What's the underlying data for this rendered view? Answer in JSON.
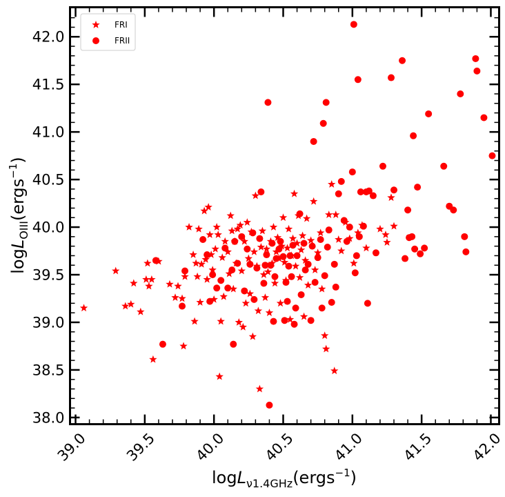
{
  "chart_data": {
    "type": "scatter",
    "xlabel": {
      "prefix": "log",
      "var": "L",
      "sub": "ν1.4GHz",
      "unit_base": "(ergs",
      "unit_exp": "−1",
      "unit_close": ")"
    },
    "ylabel": {
      "prefix": "log",
      "var": "L",
      "sub": "OIII",
      "unit_base": "(ergs",
      "unit_exp": "−1",
      "unit_close": ")"
    },
    "xlim": [
      38.96,
      42.06
    ],
    "ylim": [
      37.93,
      42.31
    ],
    "x_ticks": [
      "39.0",
      "39.5",
      "40.0",
      "40.5",
      "41.0",
      "41.5",
      "42.0"
    ],
    "y_ticks": [
      "38.0",
      "38.5",
      "39.0",
      "39.5",
      "40.0",
      "40.5",
      "41.0",
      "41.5",
      "42.0"
    ],
    "legend_position": "top-left",
    "color": "#ff0000",
    "series": [
      {
        "name": "FRI",
        "marker": "star",
        "points": [
          [
            39.06,
            39.15
          ],
          [
            39.29,
            39.54
          ],
          [
            39.36,
            39.17
          ],
          [
            39.4,
            39.19
          ],
          [
            39.42,
            39.41
          ],
          [
            39.47,
            39.11
          ],
          [
            39.51,
            39.45
          ],
          [
            39.52,
            39.62
          ],
          [
            39.53,
            39.38
          ],
          [
            39.55,
            39.45
          ],
          [
            39.56,
            38.61
          ],
          [
            39.6,
            39.64
          ],
          [
            39.68,
            39.4
          ],
          [
            39.72,
            39.26
          ],
          [
            39.74,
            39.38
          ],
          [
            39.77,
            39.25
          ],
          [
            39.78,
            38.75
          ],
          [
            39.79,
            39.48
          ],
          [
            39.82,
            40.0
          ],
          [
            39.85,
            39.71
          ],
          [
            39.86,
            39.01
          ],
          [
            39.87,
            39.62
          ],
          [
            39.88,
            39.48
          ],
          [
            39.89,
            39.98
          ],
          [
            39.9,
            39.21
          ],
          [
            39.91,
            39.61
          ],
          [
            39.93,
            40.17
          ],
          [
            39.94,
            39.66
          ],
          [
            39.95,
            39.45
          ],
          [
            39.96,
            40.21
          ],
          [
            39.97,
            39.92
          ],
          [
            39.98,
            39.71
          ],
          [
            39.99,
            39.55
          ],
          [
            40.0,
            39.24
          ],
          [
            40.01,
            39.77
          ],
          [
            40.02,
            40.0
          ],
          [
            40.03,
            39.92
          ],
          [
            40.04,
            38.43
          ],
          [
            40.05,
            39.01
          ],
          [
            40.06,
            39.68
          ],
          [
            40.07,
            39.27
          ],
          [
            40.08,
            39.85
          ],
          [
            40.1,
            39.74
          ],
          [
            40.11,
            39.51
          ],
          [
            40.12,
            40.12
          ],
          [
            40.13,
            39.96
          ],
          [
            40.14,
            39.35
          ],
          [
            40.15,
            39.85
          ],
          [
            40.16,
            39.62
          ],
          [
            40.17,
            39.98
          ],
          [
            40.18,
            39.0
          ],
          [
            40.19,
            40.02
          ],
          [
            40.2,
            39.54
          ],
          [
            40.21,
            38.95
          ],
          [
            40.22,
            39.85
          ],
          [
            40.23,
            39.2
          ],
          [
            40.24,
            40.05
          ],
          [
            40.25,
            39.67
          ],
          [
            40.26,
            39.3
          ],
          [
            40.27,
            39.95
          ],
          [
            40.28,
            38.85
          ],
          [
            40.29,
            39.74
          ],
          [
            40.3,
            40.33
          ],
          [
            40.31,
            39.59
          ],
          [
            40.32,
            39.12
          ],
          [
            40.33,
            38.3
          ],
          [
            40.34,
            39.79
          ],
          [
            40.35,
            39.96
          ],
          [
            40.36,
            39.5
          ],
          [
            40.37,
            39.26
          ],
          [
            40.38,
            39.77
          ],
          [
            40.39,
            39.53
          ],
          [
            40.4,
            39.1
          ],
          [
            40.41,
            39.85
          ],
          [
            40.42,
            39.62
          ],
          [
            40.43,
            40.0
          ],
          [
            40.44,
            39.41
          ],
          [
            40.45,
            39.74
          ],
          [
            40.46,
            39.89
          ],
          [
            40.47,
            39.67
          ],
          [
            40.48,
            39.2
          ],
          [
            40.49,
            39.8
          ],
          [
            40.5,
            40.1
          ],
          [
            40.51,
            39.63
          ],
          [
            40.52,
            39.44
          ],
          [
            40.53,
            39.78
          ],
          [
            40.54,
            39.98
          ],
          [
            40.55,
            39.03
          ],
          [
            40.56,
            39.7
          ],
          [
            40.57,
            39.88
          ],
          [
            40.58,
            40.35
          ],
          [
            40.59,
            39.59
          ],
          [
            40.6,
            39.83
          ],
          [
            40.61,
            40.12
          ],
          [
            40.62,
            39.47
          ],
          [
            40.63,
            39.76
          ],
          [
            40.64,
            39.91
          ],
          [
            40.65,
            39.06
          ],
          [
            40.66,
            39.65
          ],
          [
            40.67,
            40.09
          ],
          [
            40.68,
            39.39
          ],
          [
            40.7,
            39.86
          ],
          [
            40.72,
            40.27
          ],
          [
            40.73,
            39.55
          ],
          [
            40.75,
            39.73
          ],
          [
            40.77,
            39.94
          ],
          [
            40.78,
            39.35
          ],
          [
            40.8,
            38.86
          ],
          [
            40.81,
            38.72
          ],
          [
            40.83,
            40.13
          ],
          [
            40.85,
            40.45
          ],
          [
            40.87,
            38.49
          ],
          [
            40.88,
            40.13
          ],
          [
            40.9,
            39.87
          ],
          [
            40.92,
            39.75
          ],
          [
            40.95,
            40.05
          ],
          [
            40.98,
            39.88
          ],
          [
            41.01,
            39.62
          ],
          [
            41.04,
            39.94
          ],
          [
            41.07,
            40.02
          ],
          [
            41.1,
            39.78
          ],
          [
            41.2,
            39.98
          ],
          [
            41.24,
            39.92
          ],
          [
            41.25,
            39.84
          ],
          [
            41.28,
            40.31
          ],
          [
            41.3,
            40.01
          ]
        ]
      },
      {
        "name": "FRII",
        "marker": "circle",
        "points": [
          [
            39.58,
            39.65
          ],
          [
            39.63,
            38.77
          ],
          [
            39.77,
            39.17
          ],
          [
            39.79,
            39.54
          ],
          [
            39.92,
            39.87
          ],
          [
            39.95,
            39.71
          ],
          [
            39.97,
            39.22
          ],
          [
            39.99,
            39.5
          ],
          [
            40.02,
            39.36
          ],
          [
            40.05,
            39.44
          ],
          [
            40.08,
            39.78
          ],
          [
            40.1,
            39.36
          ],
          [
            40.13,
            39.55
          ],
          [
            40.14,
            38.77
          ],
          [
            40.15,
            39.85
          ],
          [
            40.17,
            39.62
          ],
          [
            40.2,
            39.9
          ],
          [
            40.22,
            39.33
          ],
          [
            40.24,
            39.77
          ],
          [
            40.26,
            39.61
          ],
          [
            40.28,
            39.94
          ],
          [
            40.29,
            39.24
          ],
          [
            40.31,
            39.57
          ],
          [
            40.33,
            39.88
          ],
          [
            40.34,
            40.37
          ],
          [
            40.36,
            39.41
          ],
          [
            40.37,
            39.6
          ],
          [
            40.38,
            39.71
          ],
          [
            40.39,
            41.31
          ],
          [
            40.4,
            38.13
          ],
          [
            40.41,
            39.6
          ],
          [
            40.42,
            39.83
          ],
          [
            40.43,
            39.01
          ],
          [
            40.44,
            39.48
          ],
          [
            40.45,
            39.67
          ],
          [
            40.47,
            39.77
          ],
          [
            40.48,
            39.85
          ],
          [
            40.5,
            39.69
          ],
          [
            40.51,
            39.02
          ],
          [
            40.52,
            39.42
          ],
          [
            40.53,
            39.22
          ],
          [
            40.54,
            39.59
          ],
          [
            40.55,
            39.7
          ],
          [
            40.56,
            39.48
          ],
          [
            40.57,
            39.81
          ],
          [
            40.58,
            38.98
          ],
          [
            40.59,
            39.15
          ],
          [
            40.6,
            39.7
          ],
          [
            40.62,
            40.14
          ],
          [
            40.63,
            39.29
          ],
          [
            40.65,
            39.83
          ],
          [
            40.66,
            39.55
          ],
          [
            40.68,
            39.61
          ],
          [
            40.7,
            39.02
          ],
          [
            40.71,
            39.8
          ],
          [
            40.72,
            40.9
          ],
          [
            40.73,
            39.42
          ],
          [
            40.75,
            39.68
          ],
          [
            40.77,
            39.87
          ],
          [
            40.78,
            39.15
          ],
          [
            40.79,
            41.09
          ],
          [
            40.8,
            39.49
          ],
          [
            40.81,
            41.31
          ],
          [
            40.82,
            39.79
          ],
          [
            40.83,
            39.97
          ],
          [
            40.85,
            39.21
          ],
          [
            40.87,
            39.61
          ],
          [
            40.88,
            39.37
          ],
          [
            40.9,
            40.35
          ],
          [
            40.92,
            40.48
          ],
          [
            40.94,
            40.07
          ],
          [
            40.96,
            39.85
          ],
          [
            40.98,
            40.0
          ],
          [
            41.0,
            40.58
          ],
          [
            41.01,
            42.13
          ],
          [
            41.02,
            39.52
          ],
          [
            41.03,
            39.7
          ],
          [
            41.04,
            41.55
          ],
          [
            41.05,
            39.9
          ],
          [
            41.06,
            40.37
          ],
          [
            41.08,
            40.01
          ],
          [
            41.1,
            40.37
          ],
          [
            41.11,
            39.2
          ],
          [
            41.12,
            40.38
          ],
          [
            41.15,
            40.33
          ],
          [
            41.17,
            39.73
          ],
          [
            41.22,
            40.64
          ],
          [
            41.28,
            41.57
          ],
          [
            41.3,
            40.39
          ],
          [
            41.36,
            41.75
          ],
          [
            41.38,
            39.67
          ],
          [
            41.4,
            40.18
          ],
          [
            41.41,
            39.89
          ],
          [
            41.43,
            39.9
          ],
          [
            41.44,
            40.96
          ],
          [
            41.45,
            39.77
          ],
          [
            41.47,
            40.42
          ],
          [
            41.49,
            39.72
          ],
          [
            41.52,
            39.78
          ],
          [
            41.55,
            41.19
          ],
          [
            41.66,
            40.64
          ],
          [
            41.7,
            40.22
          ],
          [
            41.73,
            40.18
          ],
          [
            41.78,
            41.4
          ],
          [
            41.81,
            39.9
          ],
          [
            41.82,
            39.74
          ],
          [
            41.89,
            41.77
          ],
          [
            41.9,
            41.64
          ],
          [
            41.95,
            41.15
          ],
          [
            42.01,
            40.75
          ]
        ]
      }
    ]
  }
}
